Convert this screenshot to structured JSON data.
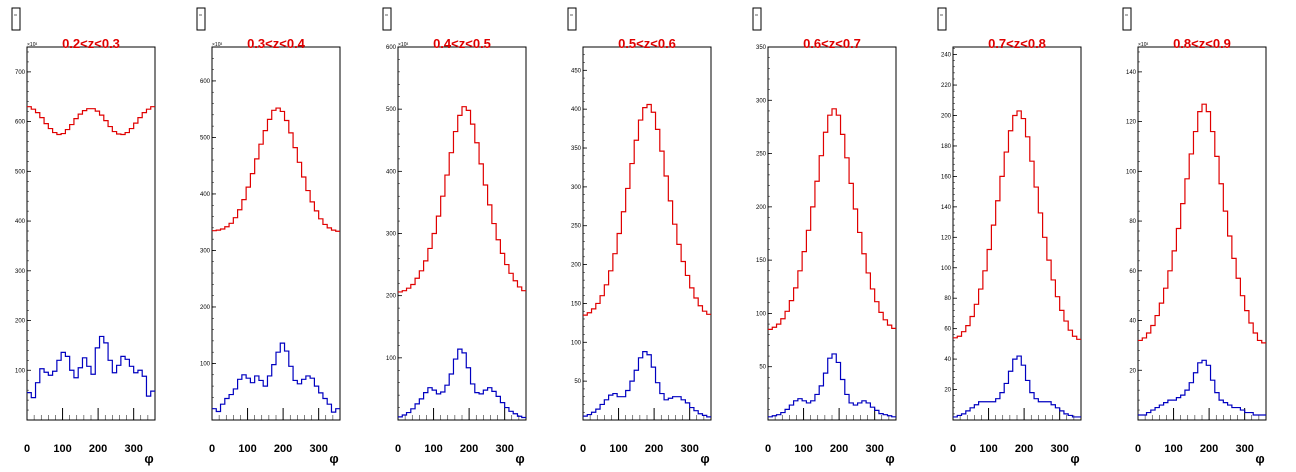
{
  "colors": {
    "red_series": "#e00000",
    "blue_series": "#0000c0",
    "title": "#e00000",
    "axis": "#000000"
  },
  "chart_data": [
    {
      "type": "line",
      "title": "0.2<z<0.3",
      "xlabel": "φ",
      "xlim": [
        0,
        360
      ],
      "xticks": [
        "0",
        "100",
        "200",
        "300"
      ],
      "ylim": [
        0,
        750
      ],
      "yticks": [
        "100",
        "200",
        "300",
        "400",
        "500",
        "600",
        "700"
      ],
      "yexponent": "×10³",
      "series": [
        {
          "color": "#e00000",
          "values": [
            630,
            625,
            618,
            608,
            596,
            586,
            578,
            574,
            576,
            584,
            594,
            606,
            615,
            622,
            626,
            626,
            621,
            613,
            602,
            590,
            580,
            575,
            574,
            578,
            586,
            597,
            608,
            618,
            625,
            630
          ]
        },
        {
          "color": "#0000c0",
          "values": [
            55,
            45,
            75,
            103,
            96,
            90,
            98,
            120,
            136,
            128,
            100,
            85,
            105,
            125,
            108,
            92,
            145,
            168,
            155,
            120,
            95,
            110,
            128,
            122,
            108,
            95,
            100,
            88,
            48,
            58
          ]
        }
      ]
    },
    {
      "type": "line",
      "title": "0.3<z<0.4",
      "xlabel": "φ",
      "xlim": [
        0,
        360
      ],
      "xticks": [
        "0",
        "100",
        "200",
        "300"
      ],
      "ylim": [
        0,
        660
      ],
      "yticks": [
        "100",
        "200",
        "300",
        "400",
        "500",
        "600"
      ],
      "yexponent": "×10³",
      "series": [
        {
          "color": "#e00000",
          "values": [
            335,
            336,
            338,
            342,
            348,
            358,
            372,
            390,
            412,
            436,
            462,
            488,
            512,
            532,
            548,
            552,
            546,
            530,
            508,
            482,
            456,
            430,
            406,
            386,
            370,
            356,
            346,
            340,
            336,
            334
          ]
        },
        {
          "color": "#0000c0",
          "values": [
            20,
            15,
            28,
            38,
            45,
            55,
            72,
            80,
            74,
            66,
            78,
            70,
            60,
            78,
            98,
            120,
            136,
            122,
            95,
            70,
            64,
            72,
            78,
            74,
            60,
            48,
            38,
            28,
            14,
            20
          ]
        }
      ]
    },
    {
      "type": "line",
      "title": "0.4<z<0.5",
      "xlabel": "φ",
      "xlim": [
        0,
        360
      ],
      "xticks": [
        "0",
        "100",
        "200",
        "300"
      ],
      "ylim": [
        0,
        600
      ],
      "yticks": [
        "100",
        "200",
        "300",
        "400",
        "500",
        "600"
      ],
      "yexponent": "×10³",
      "series": [
        {
          "color": "#e00000",
          "values": [
            206,
            208,
            212,
            218,
            228,
            240,
            256,
            276,
            300,
            328,
            360,
            394,
            430,
            464,
            490,
            504,
            498,
            476,
            446,
            412,
            378,
            346,
            316,
            290,
            268,
            250,
            236,
            224,
            214,
            208
          ]
        },
        {
          "color": "#0000c0",
          "values": [
            5,
            8,
            12,
            18,
            26,
            34,
            44,
            52,
            48,
            42,
            45,
            56,
            74,
            98,
            114,
            108,
            84,
            58,
            44,
            42,
            48,
            52,
            46,
            38,
            28,
            20,
            14,
            10,
            6,
            4
          ]
        }
      ]
    },
    {
      "type": "line",
      "title": "0.5<z<0.6",
      "xlabel": "φ",
      "xlim": [
        0,
        360
      ],
      "xticks": [
        "0",
        "100",
        "200",
        "300"
      ],
      "ylim": [
        0,
        480
      ],
      "yticks": [
        "50",
        "100",
        "150",
        "200",
        "250",
        "300",
        "350",
        "400",
        "450"
      ],
      "series": [
        {
          "color": "#e00000",
          "values": [
            135,
            138,
            143,
            150,
            160,
            174,
            192,
            214,
            240,
            268,
            298,
            330,
            360,
            386,
            402,
            406,
            396,
            374,
            346,
            314,
            282,
            252,
            226,
            204,
            186,
            170,
            157,
            147,
            140,
            136
          ]
        },
        {
          "color": "#0000c0",
          "values": [
            5,
            7,
            10,
            14,
            20,
            26,
            32,
            34,
            30,
            30,
            38,
            50,
            64,
            80,
            88,
            84,
            68,
            48,
            34,
            26,
            28,
            30,
            30,
            26,
            22,
            16,
            12,
            8,
            6,
            4
          ]
        }
      ]
    },
    {
      "type": "line",
      "title": "0.6<z<0.7",
      "xlabel": "φ",
      "xlim": [
        0,
        360
      ],
      "xticks": [
        "0",
        "100",
        "200",
        "300"
      ],
      "ylim": [
        0,
        350
      ],
      "yticks": [
        "50",
        "100",
        "150",
        "200",
        "250",
        "300",
        "350"
      ],
      "series": [
        {
          "color": "#e00000",
          "values": [
            85,
            87,
            90,
            95,
            102,
            112,
            124,
            140,
            158,
            178,
            200,
            224,
            248,
            270,
            286,
            292,
            286,
            268,
            246,
            222,
            198,
            176,
            156,
            138,
            123,
            111,
            101,
            94,
            89,
            86
          ]
        },
        {
          "color": "#0000c0",
          "values": [
            3,
            4,
            5,
            7,
            10,
            14,
            18,
            20,
            18,
            16,
            18,
            24,
            32,
            44,
            58,
            62,
            54,
            38,
            24,
            16,
            14,
            16,
            18,
            16,
            12,
            9,
            6,
            5,
            4,
            3
          ]
        }
      ]
    },
    {
      "type": "line",
      "title": "0.7<z<0.8",
      "xlabel": "φ",
      "xlim": [
        0,
        360
      ],
      "xticks": [
        "0",
        "100",
        "200",
        "300"
      ],
      "ylim": [
        0,
        245
      ],
      "yticks": [
        "20",
        "40",
        "60",
        "80",
        "100",
        "120",
        "140",
        "160",
        "180",
        "200",
        "220",
        "240"
      ],
      "series": [
        {
          "color": "#e00000",
          "values": [
            54,
            55,
            58,
            62,
            68,
            76,
            86,
            98,
            112,
            128,
            144,
            160,
            176,
            190,
            200,
            203,
            198,
            186,
            170,
            153,
            136,
            120,
            105,
            92,
            81,
            72,
            65,
            59,
            55,
            53
          ]
        },
        {
          "color": "#0000c0",
          "values": [
            2,
            3,
            4,
            6,
            8,
            10,
            12,
            12,
            12,
            12,
            14,
            18,
            24,
            32,
            40,
            42,
            36,
            26,
            18,
            14,
            12,
            12,
            12,
            10,
            8,
            6,
            4,
            3,
            2,
            2
          ]
        }
      ]
    },
    {
      "type": "line",
      "title": "0.8<z<0.9",
      "xlabel": "φ",
      "xlim": [
        0,
        360
      ],
      "xticks": [
        "0",
        "100",
        "200",
        "300"
      ],
      "ylim": [
        0,
        150
      ],
      "yticks": [
        "20",
        "40",
        "60",
        "80",
        "100",
        "120",
        "140"
      ],
      "yexponent": "×10³",
      "series": [
        {
          "color": "#e00000",
          "values": [
            32,
            33,
            35,
            38,
            42,
            47,
            53,
            60,
            68,
            77,
            87,
            97,
            107,
            116,
            124,
            127,
            124,
            116,
            106,
            95,
            84,
            74,
            65,
            57,
            50,
            44,
            39,
            35,
            32,
            31
          ]
        },
        {
          "color": "#0000c0",
          "values": [
            2,
            2,
            3,
            4,
            5,
            6,
            7,
            8,
            8,
            9,
            10,
            12,
            15,
            19,
            23,
            24,
            22,
            16,
            11,
            8,
            7,
            6,
            5,
            5,
            4,
            3,
            3,
            2,
            2,
            2
          ]
        }
      ]
    }
  ]
}
